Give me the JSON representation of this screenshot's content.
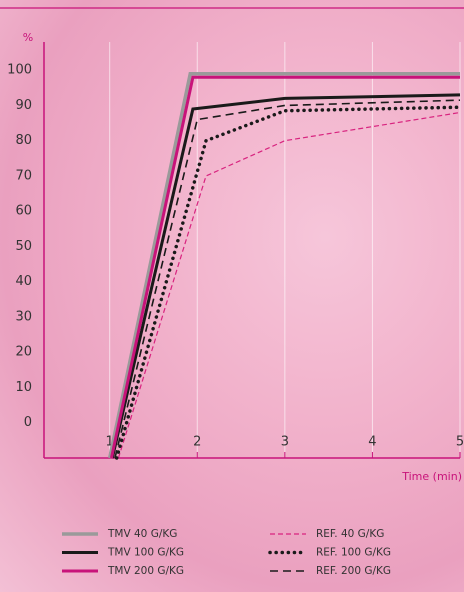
{
  "chart_data": {
    "type": "line",
    "y_unit": "%",
    "x_label": "Time (min)",
    "xlim": [
      0.25,
      5
    ],
    "xticks": [
      1,
      2,
      3,
      4,
      5
    ],
    "ylim": [
      -10,
      108
    ],
    "yticks": [
      0,
      10,
      20,
      30,
      40,
      50,
      60,
      70,
      80,
      90,
      100
    ],
    "grid": true,
    "axis_color": "#c8137a",
    "series": [
      {
        "name": "TMV 40 G/KG",
        "color": "#9a9a9a",
        "dash": "solid",
        "width": 3.5,
        "x": [
          1.0,
          1.92,
          5
        ],
        "values": [
          -10,
          99,
          99
        ]
      },
      {
        "name": "TMV 100 G/KG",
        "color": "#1a1a1a",
        "dash": "solid",
        "width": 3,
        "x": [
          1.03,
          1.95,
          3,
          5
        ],
        "values": [
          -10,
          89,
          92,
          93
        ]
      },
      {
        "name": "TMV 200 G/KG",
        "color": "#c8137a",
        "dash": "solid",
        "width": 3,
        "x": [
          1.02,
          1.95,
          5
        ],
        "values": [
          -10,
          98,
          98
        ]
      },
      {
        "name": "REF. 40 G/KG",
        "color": "#d8237f",
        "dash": "dashed",
        "width": 1.2,
        "x": [
          1.1,
          2.1,
          3,
          5
        ],
        "values": [
          -10,
          70,
          80,
          88
        ]
      },
      {
        "name": "REF. 100 G/KG",
        "color": "#1a1a1a",
        "dash": "dotted",
        "width": 3.5,
        "x": [
          1.08,
          2.1,
          3,
          5
        ],
        "values": [
          -10,
          80,
          88.5,
          89.5
        ]
      },
      {
        "name": "REF. 200 G/KG",
        "color": "#1a1a1a",
        "dash": "dashed",
        "width": 1.6,
        "x": [
          1.06,
          2.0,
          3,
          5
        ],
        "values": [
          -10,
          86,
          90,
          91.5
        ]
      }
    ]
  }
}
